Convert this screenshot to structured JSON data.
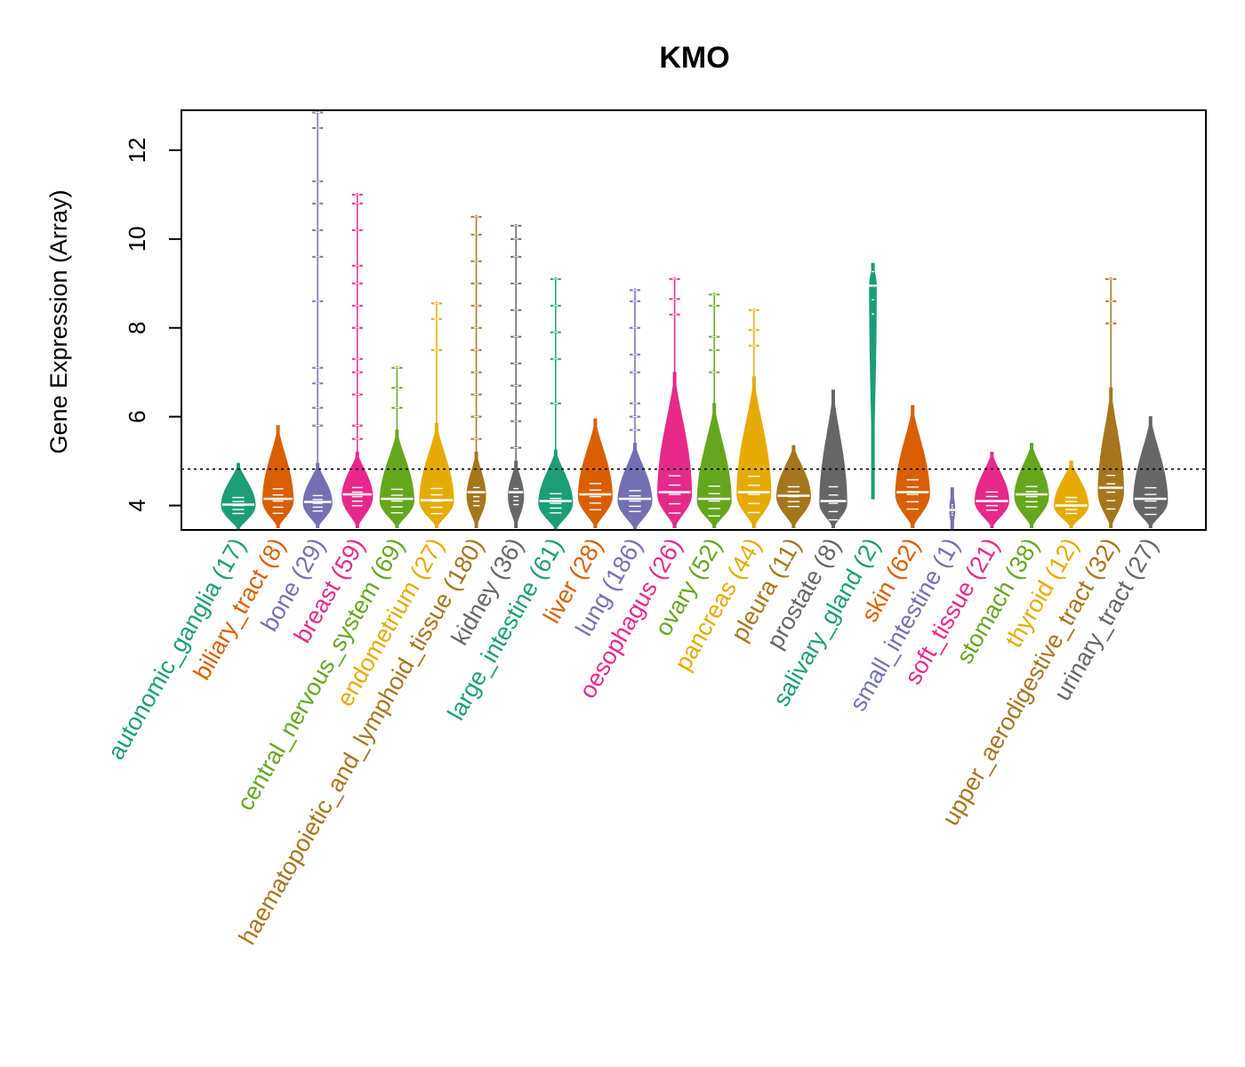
{
  "chart_data": {
    "type": "violin",
    "title": "KMO",
    "ylabel": "Gene Expression (Array)",
    "xlabel": "",
    "ylim": [
      3.45,
      12.9
    ],
    "yticks": [
      4,
      6,
      8,
      10,
      12
    ],
    "reference_line": 4.82,
    "categories": [
      {
        "label": "autonomic_ganglia (17)",
        "color": "#1b9e77",
        "min": 3.45,
        "max": 4.95,
        "mode": 4.0,
        "median": 4.02,
        "width": 1.0,
        "outliers": []
      },
      {
        "label": "biliary_tract (8)",
        "color": "#d95f02",
        "min": 3.5,
        "max": 5.8,
        "mode": 4.1,
        "median": 4.15,
        "width": 0.9,
        "outliers": []
      },
      {
        "label": "bone (29)",
        "color": "#7570b3",
        "min": 3.5,
        "max": 4.95,
        "mode": 4.05,
        "median": 4.08,
        "width": 0.85,
        "outliers": [
          5.8,
          6.2,
          6.75,
          7.1,
          8.6,
          9.6,
          10.2,
          10.8,
          11.3,
          12.5,
          12.85
        ]
      },
      {
        "label": "breast (59)",
        "color": "#e7298a",
        "min": 3.5,
        "max": 5.2,
        "mode": 4.2,
        "median": 4.25,
        "width": 0.9,
        "outliers": [
          5.5,
          5.8,
          6.5,
          7.0,
          7.3,
          8.0,
          8.5,
          9.0,
          9.4,
          10.2,
          10.8,
          11.0
        ]
      },
      {
        "label": "central_nervous_system (69)",
        "color": "#66a61e",
        "min": 3.5,
        "max": 5.7,
        "mode": 4.1,
        "median": 4.15,
        "width": 1.0,
        "outliers": [
          6.2,
          6.65,
          7.1
        ]
      },
      {
        "label": "endometrium (27)",
        "color": "#e6ab02",
        "min": 3.5,
        "max": 5.85,
        "mode": 4.1,
        "median": 4.12,
        "width": 1.0,
        "outliers": [
          7.5,
          8.2,
          8.55
        ]
      },
      {
        "label": "haematopoietic_and_lymphoid_tissue (180)",
        "color": "#a6761d",
        "min": 3.5,
        "max": 5.2,
        "mode": 4.2,
        "median": 4.3,
        "width": 0.55,
        "outliers": [
          5.5,
          6.0,
          6.5,
          7.0,
          7.5,
          8.0,
          8.5,
          9.0,
          9.5,
          10.1,
          10.5
        ]
      },
      {
        "label": "kidney (36)",
        "color": "#666666",
        "min": 3.5,
        "max": 5.0,
        "mode": 4.2,
        "median": 4.3,
        "width": 0.45,
        "outliers": [
          5.3,
          5.9,
          6.3,
          6.7,
          7.2,
          7.8,
          8.4,
          9.0,
          9.6,
          10.0,
          10.3
        ]
      },
      {
        "label": "large_intestine (61)",
        "color": "#1b9e77",
        "min": 3.45,
        "max": 5.25,
        "mode": 4.05,
        "median": 4.1,
        "width": 1.0,
        "outliers": [
          6.3,
          7.3,
          7.9,
          8.5,
          9.1
        ]
      },
      {
        "label": "liver (28)",
        "color": "#d95f02",
        "min": 3.5,
        "max": 5.95,
        "mode": 4.2,
        "median": 4.25,
        "width": 1.0,
        "outliers": []
      },
      {
        "label": "lung (186)",
        "color": "#7570b3",
        "min": 3.45,
        "max": 5.4,
        "mode": 4.1,
        "median": 4.15,
        "width": 1.0,
        "outliers": [
          5.7,
          6.0,
          6.3,
          7.0,
          7.4,
          8.0,
          8.6,
          8.85
        ]
      },
      {
        "label": "oesophagus (26)",
        "color": "#e7298a",
        "min": 3.5,
        "max": 7.0,
        "mode": 4.25,
        "median": 4.3,
        "width": 1.0,
        "outliers": [
          8.3,
          8.65,
          9.1
        ]
      },
      {
        "label": "ovary (52)",
        "color": "#66a61e",
        "min": 3.5,
        "max": 6.3,
        "mode": 4.1,
        "median": 4.15,
        "width": 1.0,
        "outliers": [
          7.0,
          7.5,
          7.8,
          8.5,
          8.75
        ]
      },
      {
        "label": "pancreas (44)",
        "color": "#e6ab02",
        "min": 3.5,
        "max": 6.9,
        "mode": 4.25,
        "median": 4.3,
        "width": 1.0,
        "outliers": [
          7.6,
          7.95,
          8.4
        ]
      },
      {
        "label": "pleura (11)",
        "color": "#a6761d",
        "min": 3.5,
        "max": 5.35,
        "mode": 4.2,
        "median": 4.22,
        "width": 1.0,
        "outliers": []
      },
      {
        "label": "prostate (8)",
        "color": "#666666",
        "min": 3.5,
        "max": 6.6,
        "mode": 4.05,
        "median": 4.1,
        "width": 0.8,
        "outliers": []
      },
      {
        "label": "salivary_gland (2)",
        "color": "#1b9e77",
        "min": 4.15,
        "max": 9.45,
        "mode": 8.95,
        "median": 8.95,
        "width": 0.2,
        "outliers": []
      },
      {
        "label": "skin (62)",
        "color": "#d95f02",
        "min": 3.5,
        "max": 6.25,
        "mode": 4.25,
        "median": 4.3,
        "width": 1.0,
        "outliers": []
      },
      {
        "label": "small_intestine (1)",
        "color": "#7570b3",
        "min": 3.45,
        "max": 4.4,
        "mode": 3.9,
        "median": 3.9,
        "width": 0.15,
        "outliers": []
      },
      {
        "label": "soft_tissue (21)",
        "color": "#e7298a",
        "min": 3.5,
        "max": 5.2,
        "mode": 4.1,
        "median": 4.1,
        "width": 1.0,
        "outliers": []
      },
      {
        "label": "stomach (38)",
        "color": "#66a61e",
        "min": 3.5,
        "max": 5.4,
        "mode": 4.2,
        "median": 4.25,
        "width": 1.0,
        "outliers": []
      },
      {
        "label": "thyroid (12)",
        "color": "#e6ab02",
        "min": 3.5,
        "max": 5.0,
        "mode": 4.0,
        "median": 4.0,
        "width": 1.0,
        "outliers": []
      },
      {
        "label": "upper_aerodigestive_tract (32)",
        "color": "#a6761d",
        "min": 3.5,
        "max": 6.65,
        "mode": 4.3,
        "median": 4.4,
        "width": 0.75,
        "outliers": [
          8.1,
          8.6,
          9.1
        ]
      },
      {
        "label": "urinary_tract (27)",
        "color": "#666666",
        "min": 3.5,
        "max": 6.0,
        "mode": 4.1,
        "median": 4.15,
        "width": 1.0,
        "outliers": []
      }
    ]
  }
}
